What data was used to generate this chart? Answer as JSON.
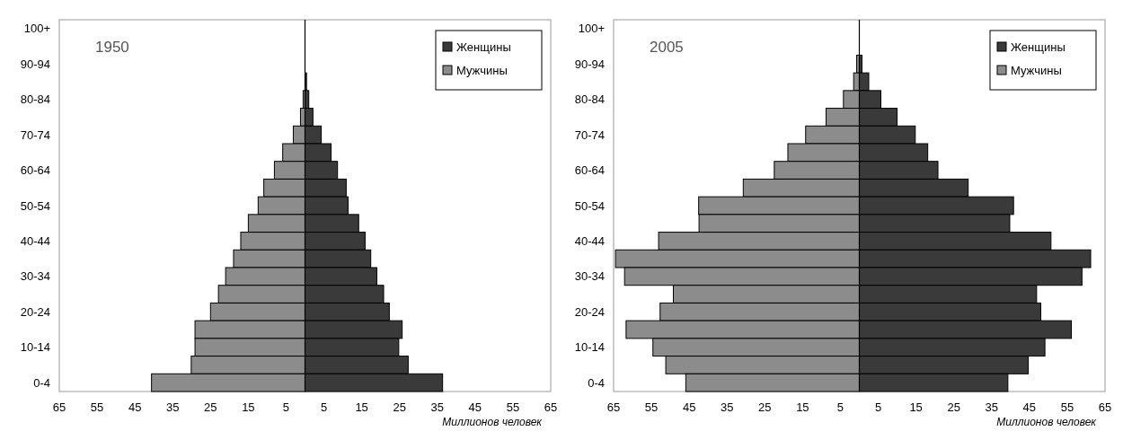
{
  "chart_data": [
    {
      "type": "bar",
      "orientation": "horizontal",
      "stacked": true,
      "title": "1950",
      "xlabel": "Миллионов человек",
      "legend": "top right",
      "categories": [
        "100+",
        null,
        "90-94",
        null,
        "80-84",
        null,
        "70-74",
        null,
        "60-64",
        null,
        "50-54",
        null,
        "40-44",
        null,
        "30-34",
        null,
        "20-24",
        null,
        "10-14",
        null,
        "0-4"
      ],
      "xlim": [
        -65,
        65
      ],
      "xticks": [
        {
          "value": -65,
          "label": "65"
        },
        {
          "value": -55,
          "label": "55"
        },
        {
          "value": -45,
          "label": "45"
        },
        {
          "value": -35,
          "label": "35"
        },
        {
          "value": -25,
          "label": "25"
        },
        {
          "value": -15,
          "label": "15"
        },
        {
          "value": -5,
          "label": "5"
        },
        5,
        15,
        25,
        35,
        45,
        55,
        65
      ],
      "series": [
        {
          "name": "Женщины",
          "color": "#3a3a3a",
          "values": [
            0,
            0,
            0,
            0.4,
            1.0,
            2.1,
            4.3,
            6.9,
            8.6,
            10.9,
            11.4,
            14.2,
            15.9,
            17.4,
            19.0,
            20.8,
            22.3,
            25.7,
            24.8,
            27.3,
            36.4
          ]
        },
        {
          "name": "Мужчины",
          "color": "#8c8c8c",
          "values": [
            0,
            0,
            0,
            null,
            -0.5,
            -1.2,
            -3.1,
            -5.9,
            -8.1,
            -10.9,
            -12.4,
            -15.0,
            -17.0,
            -18.9,
            -21.0,
            -22.9,
            -25.0,
            -29.1,
            -29.1,
            -30.1,
            -40.6
          ]
        }
      ]
    },
    {
      "type": "bar",
      "orientation": "horizontal",
      "stacked": true,
      "title": "2005",
      "xlabel": "Миллионов человек",
      "legend": "top right",
      "categories": [
        "100+",
        null,
        "90-94",
        null,
        "80-84",
        null,
        "70-74",
        null,
        "60-64",
        null,
        "50-54",
        null,
        "40-44",
        null,
        "30-34",
        null,
        "20-24",
        null,
        "10-14",
        null,
        "0-4"
      ],
      "xlim": [
        -65,
        65
      ],
      "xticks": [
        {
          "value": -65,
          "label": "65"
        },
        {
          "value": -55,
          "label": "55"
        },
        {
          "value": -45,
          "label": "45"
        },
        {
          "value": -35,
          "label": "35"
        },
        {
          "value": -25,
          "label": "25"
        },
        {
          "value": -15,
          "label": "15"
        },
        {
          "value": -5,
          "label": "5"
        },
        5,
        15,
        25,
        35,
        45,
        55,
        65
      ],
      "series": [
        {
          "name": "Женщины",
          "color": "#3a3a3a",
          "values": [
            0,
            0,
            0.7,
            2.5,
            5.7,
            10.0,
            14.8,
            18.1,
            20.8,
            28.8,
            40.8,
            39.8,
            50.7,
            61.2,
            58.9,
            46.9,
            48.0,
            56.1,
            49.1,
            44.7,
            39.3
          ]
        },
        {
          "name": "Мужчины",
          "color": "#8c8c8c",
          "values": [
            0,
            0,
            -0.7,
            -1.5,
            -4.2,
            -8.8,
            -14.2,
            -18.9,
            -22.5,
            -30.7,
            -42.5,
            -42.4,
            -53.1,
            -64.5,
            -62.1,
            -49.2,
            -52.7,
            -61.7,
            -54.6,
            -51.2,
            -45.9
          ]
        }
      ]
    }
  ]
}
